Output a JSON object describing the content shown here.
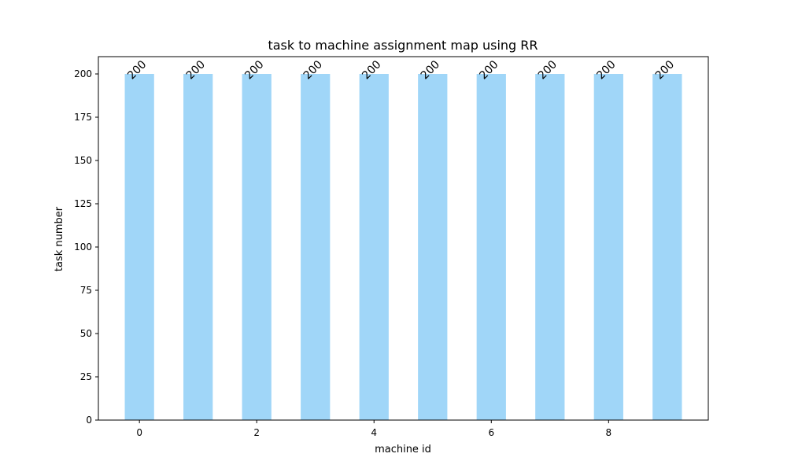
{
  "chart_data": {
    "type": "bar",
    "title": "task to machine assignment map using RR",
    "xlabel": "machine id",
    "ylabel": "task number",
    "x": [
      0,
      1,
      2,
      3,
      4,
      5,
      6,
      7,
      8,
      9
    ],
    "values": [
      200,
      200,
      200,
      200,
      200,
      200,
      200,
      200,
      200,
      200
    ],
    "data_labels": [
      "200",
      "200",
      "200",
      "200",
      "200",
      "200",
      "200",
      "200",
      "200",
      "200"
    ],
    "xlim": [
      -0.7,
      9.7
    ],
    "ylim": [
      0,
      210
    ],
    "xticks": [
      0,
      2,
      4,
      6,
      8
    ],
    "xtick_labels": [
      "0",
      "2",
      "4",
      "6",
      "8"
    ],
    "yticks": [
      0,
      25,
      50,
      75,
      100,
      125,
      150,
      175,
      200
    ],
    "ytick_labels": [
      "0",
      "25",
      "50",
      "75",
      "100",
      "125",
      "150",
      "175",
      "200"
    ],
    "bar_color": "#a0d6f8",
    "grid": false,
    "legend": "none"
  }
}
